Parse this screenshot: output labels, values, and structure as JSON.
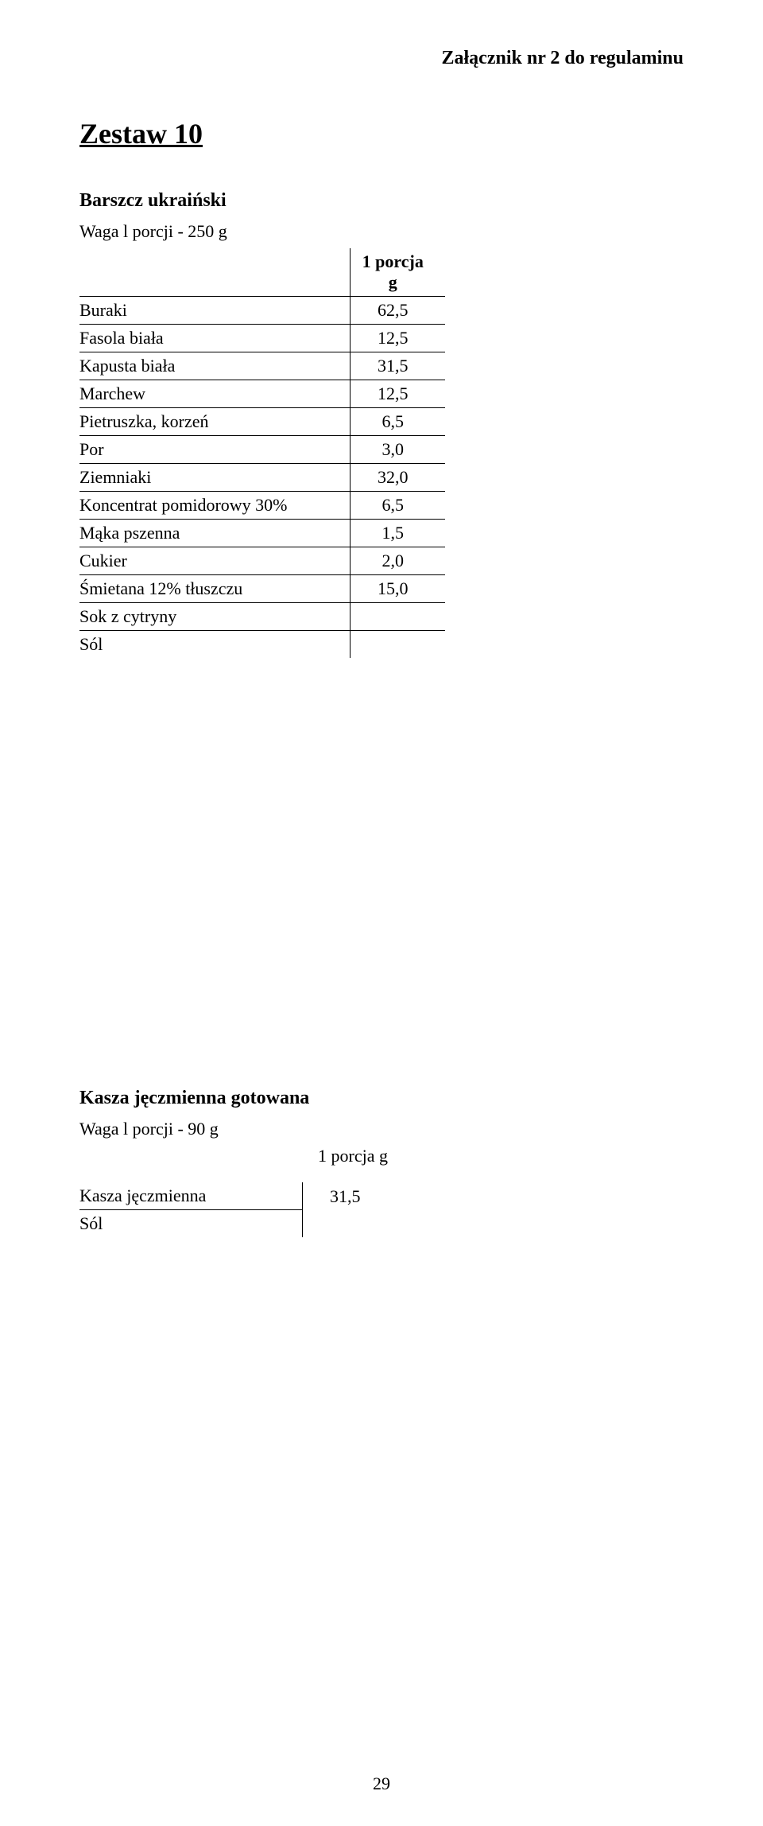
{
  "header": {
    "attachment_label": "Załącznik nr 2 do regulaminu"
  },
  "main_title": "Zestaw 10",
  "section1": {
    "title": "Barszcz ukraiński",
    "portion_line": "Waga l porcji - 250 g",
    "table": {
      "header_col2_line1": "1  porcja",
      "header_col2_line2": "g",
      "rows": [
        {
          "name": "Buraki",
          "value": "62,5"
        },
        {
          "name": "Fasola biała",
          "value": "12,5"
        },
        {
          "name": "Kapusta biała",
          "value": "31,5"
        },
        {
          "name": "Marchew",
          "value": "12,5"
        },
        {
          "name": "Pietruszka, korzeń",
          "value": "6,5"
        },
        {
          "name": "Por",
          "value": "3,0"
        },
        {
          "name": "Ziemniaki",
          "value": "32,0"
        },
        {
          "name": "Koncentrat pomidorowy 30%",
          "value": "6,5"
        },
        {
          "name": "Mąka pszenna",
          "value": "1,5"
        },
        {
          "name": "Cukier",
          "value": "2,0"
        },
        {
          "name": "Śmietana 12% tłuszczu",
          "value": "15,0"
        },
        {
          "name": "Sok z cytryny",
          "value": ""
        },
        {
          "name": "Sól",
          "value": ""
        }
      ]
    }
  },
  "section2": {
    "title": "Kasza jęczmienna gotowana",
    "portion_line": "Waga l porcji - 90 g",
    "portion_label": "1 porcja g",
    "table": {
      "rows": [
        {
          "name": "Kasza jęczmienna",
          "value": "31,5"
        },
        {
          "name": "Sól",
          "value": ""
        }
      ]
    }
  },
  "page_number": "29",
  "style": {
    "background_color": "#ffffff",
    "text_color": "#000000",
    "border_color": "#000000",
    "font_family": "Times New Roman",
    "body_fontsize": 22,
    "title_fontsize": 36,
    "section_title_fontsize": 24
  }
}
